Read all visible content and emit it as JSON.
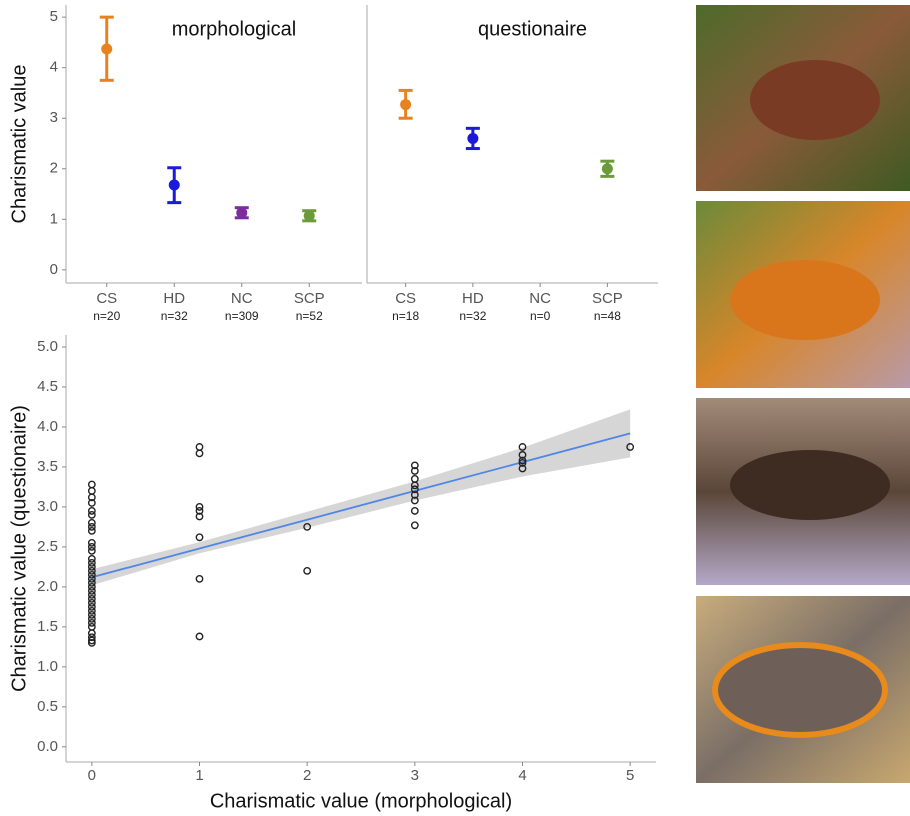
{
  "chart_data": [
    {
      "type": "errorbar",
      "title": "morphological",
      "y_label": "Charismatic value",
      "categories": [
        "CS",
        "HD",
        "NC",
        "SCP"
      ],
      "n_labels": [
        "n=20",
        "n=32",
        "n=309",
        "n=52"
      ],
      "colors": [
        "#e8821e",
        "#1a1adb",
        "#7b2d9e",
        "#6a9a3a"
      ],
      "values": [
        4.37,
        1.68,
        1.13,
        1.07
      ],
      "lower": [
        3.75,
        1.33,
        1.03,
        0.97
      ],
      "upper": [
        5.0,
        2.02,
        1.23,
        1.17
      ],
      "ylim": [
        -0.26,
        5.24
      ],
      "yticks": [
        0,
        1,
        2,
        3,
        4,
        5
      ]
    },
    {
      "type": "errorbar",
      "title": "questionaire",
      "categories": [
        "CS",
        "HD",
        "NC",
        "SCP"
      ],
      "n_labels": [
        "n=18",
        "n=32",
        "n=0",
        "n=48"
      ],
      "colors": [
        "#e8821e",
        "#1a1adb",
        "#7b2d9e",
        "#6a9a3a"
      ],
      "values": [
        3.27,
        2.6,
        null,
        2.0
      ],
      "lower": [
        3.0,
        2.4,
        null,
        1.85
      ],
      "upper": [
        3.55,
        2.8,
        null,
        2.15
      ],
      "ylim": [
        -0.26,
        5.24
      ]
    },
    {
      "type": "scatter",
      "x_label": "Charismatic value (morphological)",
      "y_label": "Charismatic value (questionaire)",
      "x": [
        0,
        0,
        0,
        0,
        0,
        0,
        0,
        0,
        0,
        0,
        0,
        0,
        0,
        0,
        0,
        0,
        0,
        0,
        0,
        0,
        0,
        0,
        0,
        0,
        0,
        0,
        0,
        0,
        0,
        0,
        0,
        0,
        0,
        0,
        1,
        1,
        1,
        1,
        1,
        1,
        1,
        1,
        2,
        2,
        3,
        3,
        3,
        3,
        3,
        3,
        3,
        3,
        3,
        4,
        4,
        4,
        4,
        4,
        5
      ],
      "values": [
        1.3,
        1.33,
        1.37,
        1.42,
        1.5,
        1.55,
        1.6,
        1.65,
        1.7,
        1.75,
        1.8,
        1.85,
        1.9,
        1.95,
        2.0,
        2.05,
        2.1,
        2.15,
        2.2,
        2.25,
        2.3,
        2.35,
        2.45,
        2.5,
        2.55,
        2.7,
        2.75,
        2.8,
        2.9,
        2.95,
        3.05,
        3.12,
        3.2,
        3.28,
        3.75,
        3.67,
        3.0,
        2.95,
        2.88,
        2.62,
        2.1,
        1.38,
        2.75,
        2.2,
        3.52,
        3.45,
        3.35,
        3.27,
        3.22,
        3.15,
        3.08,
        2.95,
        2.77,
        3.75,
        3.65,
        3.58,
        3.55,
        3.48,
        3.75
      ],
      "fit": {
        "x": [
          0,
          1,
          2,
          3,
          4,
          5
        ],
        "values": [
          2.12,
          2.48,
          2.84,
          3.2,
          3.56,
          3.92
        ],
        "lower": [
          2.02,
          2.42,
          2.74,
          3.08,
          3.38,
          3.62
        ],
        "upper": [
          2.22,
          2.56,
          2.94,
          3.32,
          3.74,
          4.22
        ],
        "color": "#4f86e8",
        "band_color": "#c8c8c8"
      },
      "xlim": [
        -0.24,
        5.24
      ],
      "xticks": [
        0,
        1,
        2,
        3,
        4,
        5
      ],
      "ylim": [
        -0.19,
        5.15
      ],
      "yticks": [
        {
          "value": 0,
          "label": "0.0"
        },
        {
          "value": 0.5,
          "label": "0.5"
        },
        {
          "value": 1,
          "label": "1.0"
        },
        {
          "value": 1.5,
          "label": "1.5"
        },
        {
          "value": 2,
          "label": "2.0"
        },
        {
          "value": 2.5,
          "label": "2.5"
        },
        {
          "value": 3,
          "label": "3.0"
        },
        {
          "value": 3.5,
          "label": "3.5"
        },
        {
          "value": 4,
          "label": "4.0"
        },
        {
          "value": 4.5,
          "label": "4.5"
        },
        {
          "value": 5,
          "label": "5.0"
        }
      ]
    }
  ]
}
